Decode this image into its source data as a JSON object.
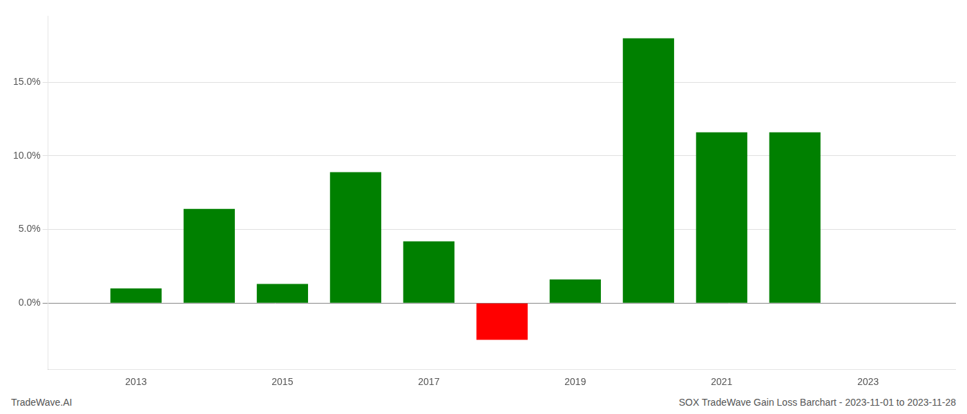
{
  "chart_data": {
    "type": "bar",
    "title": "SOX TradeWave Gain Loss Barchart - 2023-11-01 to 2023-11-28",
    "annotations": [
      "TradeWave.AI"
    ],
    "x": [
      2013,
      2014,
      2015,
      2016,
      2017,
      2018,
      2019,
      2020,
      2021,
      2022
    ],
    "values": [
      0.01,
      0.064,
      0.013,
      0.089,
      0.042,
      -0.025,
      0.016,
      0.18,
      0.116,
      0.116
    ],
    "colors": [
      "#008000",
      "#008000",
      "#008000",
      "#008000",
      "#008000",
      "#ff0000",
      "#008000",
      "#008000",
      "#008000",
      "#008000"
    ],
    "xlim": [
      2011.8,
      2024.2
    ],
    "xticks": [
      2013,
      2015,
      2017,
      2019,
      2021,
      2023
    ],
    "ylim": [
      -0.045,
      0.195
    ],
    "yticks": [
      {
        "value": 0.0,
        "label": "0.0%"
      },
      {
        "value": 0.05,
        "label": "5.0%"
      },
      {
        "value": 0.1,
        "label": "10.0%"
      },
      {
        "value": 0.15,
        "label": "15.0%"
      }
    ],
    "grid": true
  }
}
